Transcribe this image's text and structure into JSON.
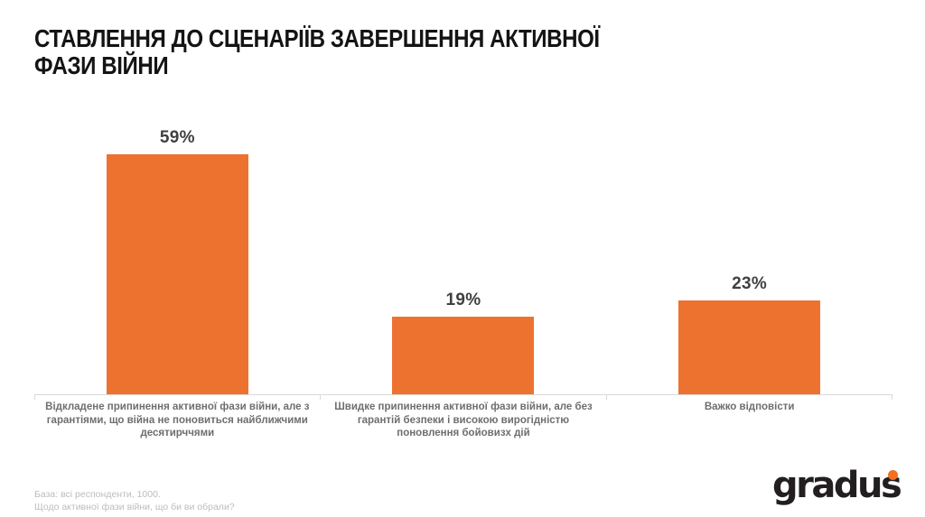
{
  "title_lines": [
    "СТАВЛЕННЯ ДО СЦЕНАРІЇВ ЗАВЕРШЕННЯ АКТИВНОЇ",
    "ФАЗИ ВІЙНИ"
  ],
  "chart_data": {
    "type": "bar",
    "title": "СТАВЛЕННЯ ДО СЦЕНАРІЇВ ЗАВЕРШЕННЯ АКТИВНОЇ ФАЗИ ВІЙНИ",
    "categories": [
      "Відкладене припинення активної фази війни, але з гарантіями, що війна не поновиться найближчими десятирччями",
      "Швидке припинення активної фази війни, але без гарантій безпеки і високою вирогідністю поновлення бойовизх дій",
      "Важко відповісти"
    ],
    "values": [
      59,
      19,
      23
    ],
    "value_labels": [
      "59%",
      "19%",
      "23%"
    ],
    "xlabel": "",
    "ylabel": "",
    "ylim": [
      0,
      66
    ],
    "grid": false,
    "legend": false,
    "bar_color": "#ed7230",
    "axis_line_color": "#d9d9d9"
  },
  "footer": {
    "line1": "База: всі респонденти, 1000.",
    "line2": "Щодо активної фази війни, що би ви обрали?"
  },
  "logo": {
    "text": "gradus",
    "text_color": "#231f20",
    "dot_color": "#f2701f"
  }
}
